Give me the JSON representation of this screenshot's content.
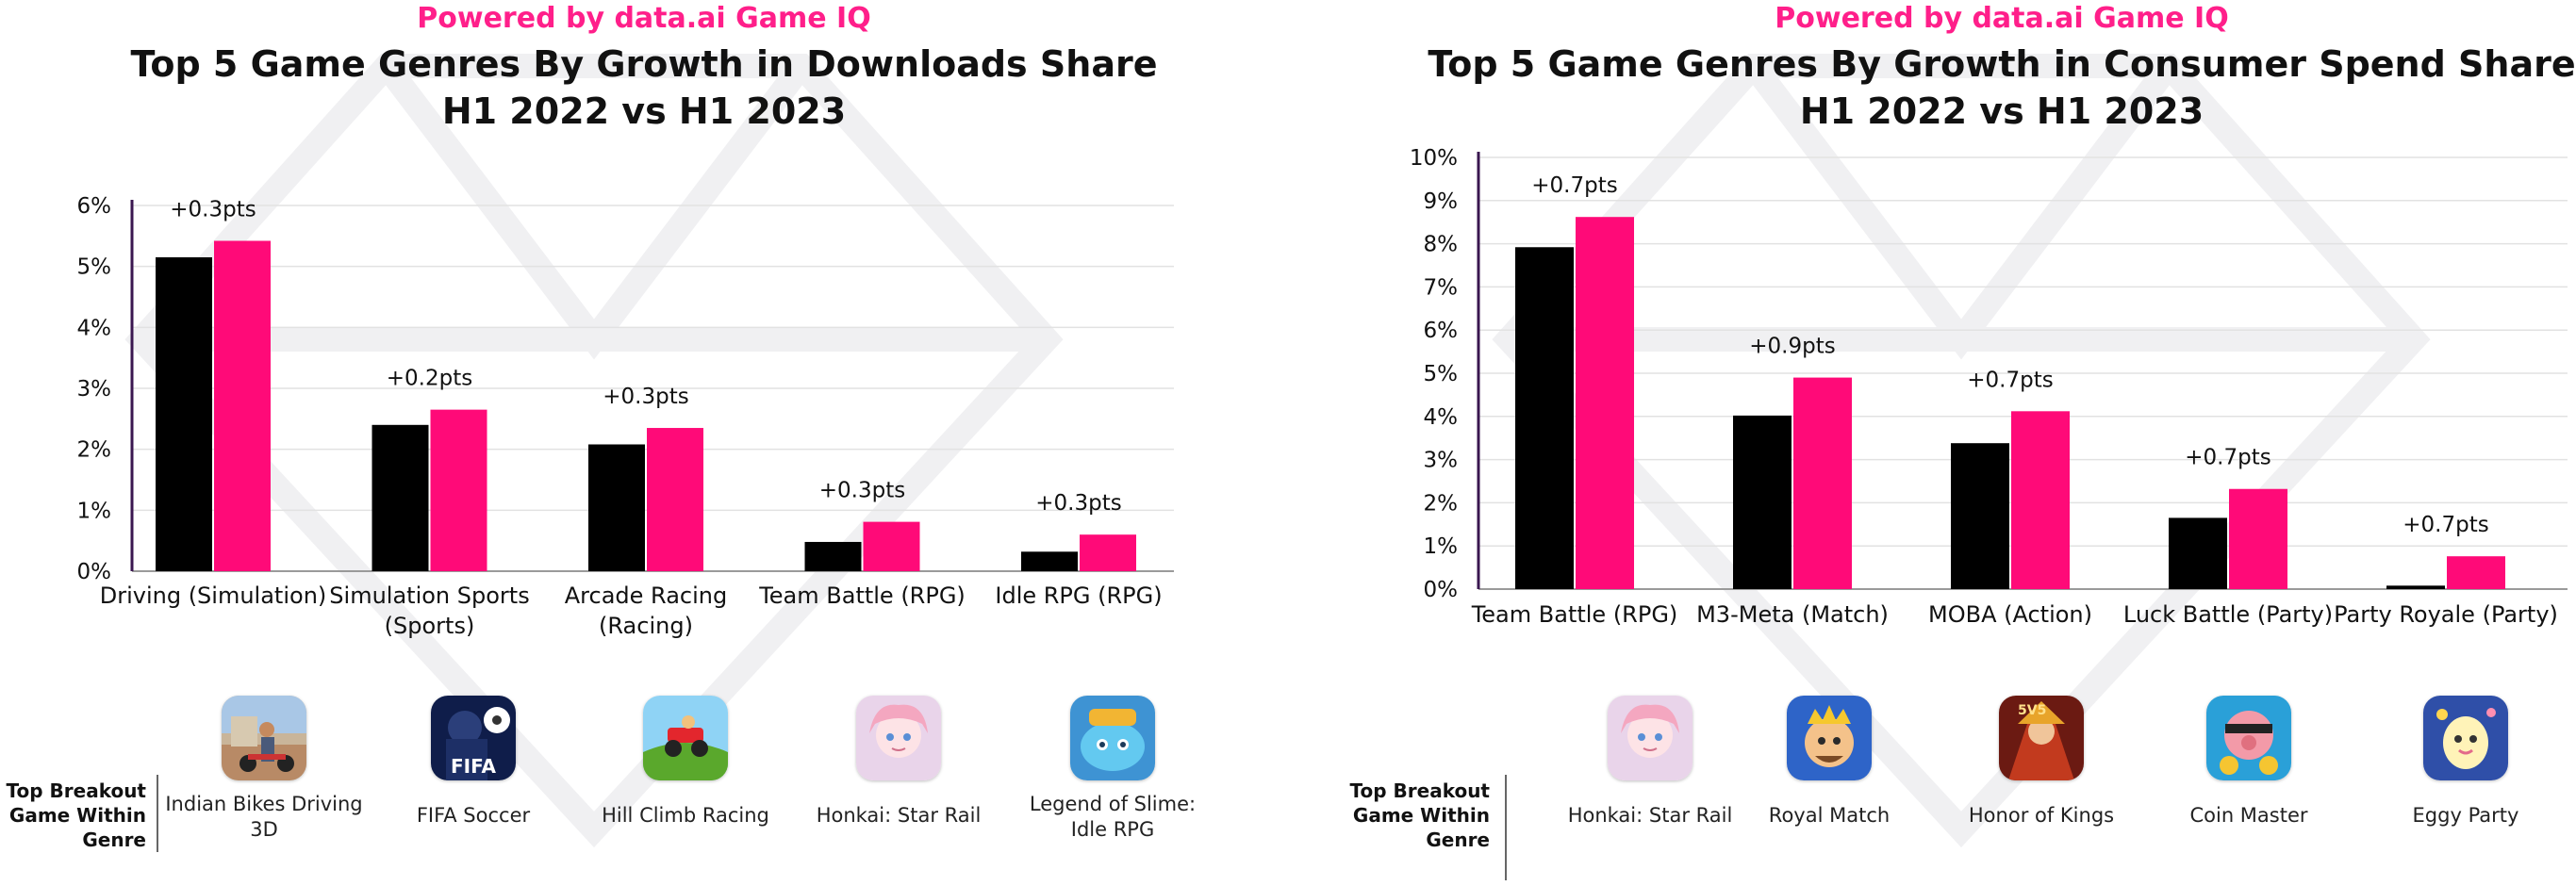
{
  "chart_data": [
    {
      "type": "bar",
      "title": "Top 5 Game Genres By Growth in Downloads Share",
      "subtitle": "H1 2022 vs H1 2023",
      "powered_by": "Powered by data.ai Game IQ",
      "categories": [
        "Driving (Simulation)",
        "Simulation Sports (Sports)",
        "Arcade Racing (Racing)",
        "Team Battle (RPG)",
        "Idle RPG (RPG)"
      ],
      "series": [
        {
          "values": [
            5.15,
            2.4,
            2.08,
            0.48,
            0.32
          ],
          "color": "#000000"
        },
        {
          "values": [
            5.42,
            2.65,
            2.35,
            0.81,
            0.6
          ],
          "color": "#ff0a78"
        }
      ],
      "annotations": [
        "+0.3pts",
        "+0.2pts",
        "+0.3pts",
        "+0.3pts",
        "+0.3pts"
      ],
      "yticks": [
        "0%",
        "1%",
        "2%",
        "3%",
        "4%",
        "5%",
        "6%"
      ],
      "ylim": [
        0,
        6
      ],
      "grid": true,
      "games_header": "Top Breakout Game Within Genre",
      "games": [
        {
          "name": "Indian Bikes Driving 3D",
          "icon": "indian-bikes-icon"
        },
        {
          "name": "FIFA Soccer",
          "icon": "fifa-soccer-icon"
        },
        {
          "name": "Hill Climb Racing",
          "icon": "hill-climb-racing-icon"
        },
        {
          "name": "Honkai: Star Rail",
          "icon": "honkai-star-rail-icon"
        },
        {
          "name": "Legend of Slime: Idle RPG",
          "icon": "legend-of-slime-icon"
        }
      ]
    },
    {
      "type": "bar",
      "title": "Top 5 Game Genres By Growth in Consumer Spend Share",
      "subtitle": "H1 2022 vs H1 2023",
      "powered_by": "Powered by data.ai Game IQ",
      "categories": [
        "Team Battle (RPG)",
        "M3-Meta (Match)",
        "MOBA (Action)",
        "Luck Battle (Party)",
        "Party Royale (Party)"
      ],
      "series": [
        {
          "values": [
            7.92,
            4.02,
            3.38,
            1.65,
            0.08
          ],
          "color": "#000000"
        },
        {
          "values": [
            8.62,
            4.9,
            4.12,
            2.32,
            0.76
          ],
          "color": "#ff0a78"
        }
      ],
      "annotations": [
        "+0.7pts",
        "+0.9pts",
        "+0.7pts",
        "+0.7pts",
        "+0.7pts"
      ],
      "yticks": [
        "0%",
        "1%",
        "2%",
        "3%",
        "4%",
        "5%",
        "6%",
        "7%",
        "8%",
        "9%",
        "10%"
      ],
      "ylim": [
        0,
        10
      ],
      "grid": true,
      "games_header": "Top Breakout Game Within Genre",
      "games": [
        {
          "name": "Honkai: Star Rail",
          "icon": "honkai-star-rail-icon"
        },
        {
          "name": "Royal Match",
          "icon": "royal-match-icon"
        },
        {
          "name": "Honor of Kings",
          "icon": "honor-of-kings-icon"
        },
        {
          "name": "Coin Master",
          "icon": "coin-master-icon"
        },
        {
          "name": "Eggy Party",
          "icon": "eggy-party-icon"
        }
      ]
    }
  ],
  "colors": {
    "accent": "#ff1f8a",
    "series_2022": "#000000",
    "series_2023": "#ff0a78",
    "grid": "#e2e2e2"
  }
}
